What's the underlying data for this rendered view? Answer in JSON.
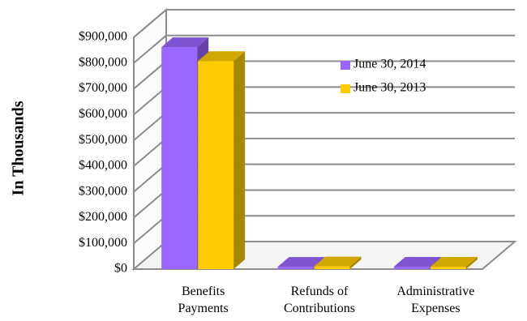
{
  "chart_data": {
    "type": "bar",
    "ylabel": "In Thousands",
    "categories": [
      [
        "Benefits",
        "Payments"
      ],
      [
        "Refunds of",
        "Contributions"
      ],
      [
        "Administrative",
        "Expenses"
      ]
    ],
    "series": [
      {
        "name": "June 30, 2014",
        "color": "#9966ff",
        "values": [
          862000,
          9000,
          9500
        ]
      },
      {
        "name": "June 30, 2013",
        "color": "#ffcc00",
        "values": [
          808000,
          10500,
          9500
        ]
      }
    ],
    "ylim": [
      0,
      900000
    ],
    "yticks": [
      "$0",
      "$100,000",
      "$200,000",
      "$300,000",
      "$400,000",
      "$500,000",
      "$600,000",
      "$700,000",
      "$800,000",
      "$900,000"
    ],
    "grid": true,
    "legend": "top-right",
    "three_d": true
  }
}
